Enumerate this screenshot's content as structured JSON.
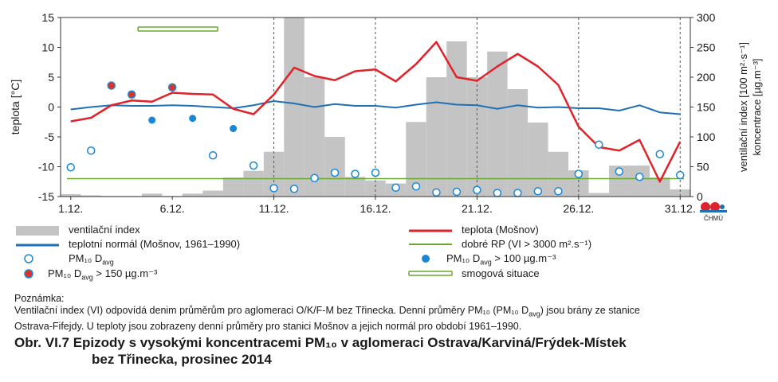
{
  "chart_data": {
    "type": "combo",
    "x_ticks": [
      "1.12.",
      "6.12.",
      "11.12.",
      "16.12.",
      "21.12.",
      "26.12.",
      "31.12."
    ],
    "y_left": {
      "label": "teplota  [°C]",
      "lim": [
        -15,
        15
      ],
      "ticks": [
        "15",
        "10",
        "5",
        "0",
        "-5",
        "-10",
        "-15"
      ]
    },
    "y_right": {
      "label_line1": "ventilační index [100 m²·s⁻¹]",
      "label_line2": "koncentrace [µg.m⁻³]",
      "lim": [
        0,
        300
      ],
      "ticks": [
        "300",
        "250",
        "200",
        "150",
        "100",
        "50",
        "0"
      ]
    },
    "days": [
      1,
      2,
      3,
      4,
      5,
      6,
      7,
      8,
      9,
      10,
      11,
      12,
      13,
      14,
      15,
      16,
      17,
      18,
      19,
      20,
      21,
      22,
      23,
      24,
      25,
      26,
      27,
      28,
      29,
      30,
      31
    ],
    "ventilation_index": [
      4,
      2,
      1,
      1,
      5,
      1,
      5,
      10,
      32,
      43,
      75,
      300,
      200,
      100,
      33,
      27,
      22,
      125,
      200,
      260,
      200,
      243,
      180,
      124,
      75,
      44,
      6,
      52,
      52,
      32,
      12
    ],
    "temperature": [
      -2.4,
      -1.8,
      0.3,
      1.1,
      0.9,
      2.4,
      2.2,
      2.1,
      -0.3,
      -1.2,
      2.1,
      6.6,
      5.2,
      4.5,
      6.0,
      6.3,
      4.3,
      7.2,
      10.9,
      5.0,
      4.4,
      6.8,
      8.9,
      6.8,
      3.7,
      -3.3,
      -6.7,
      -7.3,
      -5.5,
      -12.5,
      -5.8
    ],
    "temperature_normal": [
      -0.4,
      0.0,
      0.3,
      0.2,
      0.2,
      0.3,
      0.2,
      0.0,
      -0.2,
      0.3,
      1.0,
      0.6,
      0.0,
      0.5,
      0.2,
      0.2,
      -0.1,
      0.4,
      0.8,
      0.4,
      0.3,
      -0.3,
      0.3,
      -0.1,
      0.0,
      -0.2,
      -0.2,
      -0.6,
      0.3,
      -0.9,
      -1.2
    ],
    "pm10_normal": [
      {
        "day": 1,
        "value": 49
      },
      {
        "day": 2,
        "value": 77
      },
      {
        "day": 8,
        "value": 69
      },
      {
        "day": 10,
        "value": 52
      },
      {
        "day": 11,
        "value": 14
      },
      {
        "day": 12,
        "value": 13
      },
      {
        "day": 13,
        "value": 31
      },
      {
        "day": 14,
        "value": 40
      },
      {
        "day": 15,
        "value": 38
      },
      {
        "day": 16,
        "value": 40
      },
      {
        "day": 17,
        "value": 15
      },
      {
        "day": 18,
        "value": 17
      },
      {
        "day": 19,
        "value": 7
      },
      {
        "day": 20,
        "value": 8
      },
      {
        "day": 21,
        "value": 11
      },
      {
        "day": 22,
        "value": 6
      },
      {
        "day": 23,
        "value": 6
      },
      {
        "day": 24,
        "value": 9
      },
      {
        "day": 25,
        "value": 9
      },
      {
        "day": 26,
        "value": 38
      },
      {
        "day": 27,
        "value": 87
      },
      {
        "day": 28,
        "value": 42
      },
      {
        "day": 29,
        "value": 33
      },
      {
        "day": 30,
        "value": 71
      },
      {
        "day": 31,
        "value": 36
      }
    ],
    "pm10_over_100": [
      {
        "day": 5,
        "value": 128
      },
      {
        "day": 7,
        "value": 131
      },
      {
        "day": 9,
        "value": 114
      }
    ],
    "pm10_over_150": [
      {
        "day": 3,
        "value": 186
      },
      {
        "day": 4,
        "value": 171
      },
      {
        "day": 6,
        "value": 183
      }
    ],
    "good_dispersion_line_value": 30,
    "smog_situation": {
      "from_day": 4,
      "to_day": 8
    },
    "grid": "vertical dashed"
  },
  "legend": {
    "ventilation": "ventilační index",
    "temp_normal": "teplotní normál (Mošnov, 1961–1990)",
    "pm10": "PM₁₀ D",
    "pm10_sub": "avg",
    "pm10_100": "PM₁₀ D",
    "pm10_100_suffix": " > 100 µg.m⁻³",
    "pm10_150": "PM₁₀ D",
    "pm10_150_suffix": " > 150 µg.m⁻³",
    "temperature": "teplota (Mošnov)",
    "good_rp": "dobré RP (VI > 3000 m².s⁻¹)",
    "smog": "smogová situace"
  },
  "note": {
    "heading": "Poznámka:",
    "line1": "Ventilační index (VI) odpovídá denim průměrům pro aglomeraci O/K/F-M bez Třinecka. Denní průměry PM₁₀ (PM₁₀ D",
    "line1_end": ") jsou brány ze stanice",
    "line2": "Ostrava-Fifejdy. U teploty jsou zobrazeny denní průměry pro stanici Mošnov a jejich normál pro období 1961–1990."
  },
  "caption": {
    "line1": "Obr. VI.7  Epizody s vysokými koncentracemi PM₁₀ v aglomeraci Ostrava/Karviná/Frýdek-Místek",
    "line2": "bez Třinecka, prosinec 2014"
  },
  "logo": {
    "text": "ČHMÚ"
  },
  "colors": {
    "bars": "#c4c4c4",
    "temperature": "#e0232a",
    "normal": "#1f6fb5",
    "marker_blue": "#1a87d6",
    "marker_red": "#d9342b",
    "good_rp": "#6aa632"
  }
}
